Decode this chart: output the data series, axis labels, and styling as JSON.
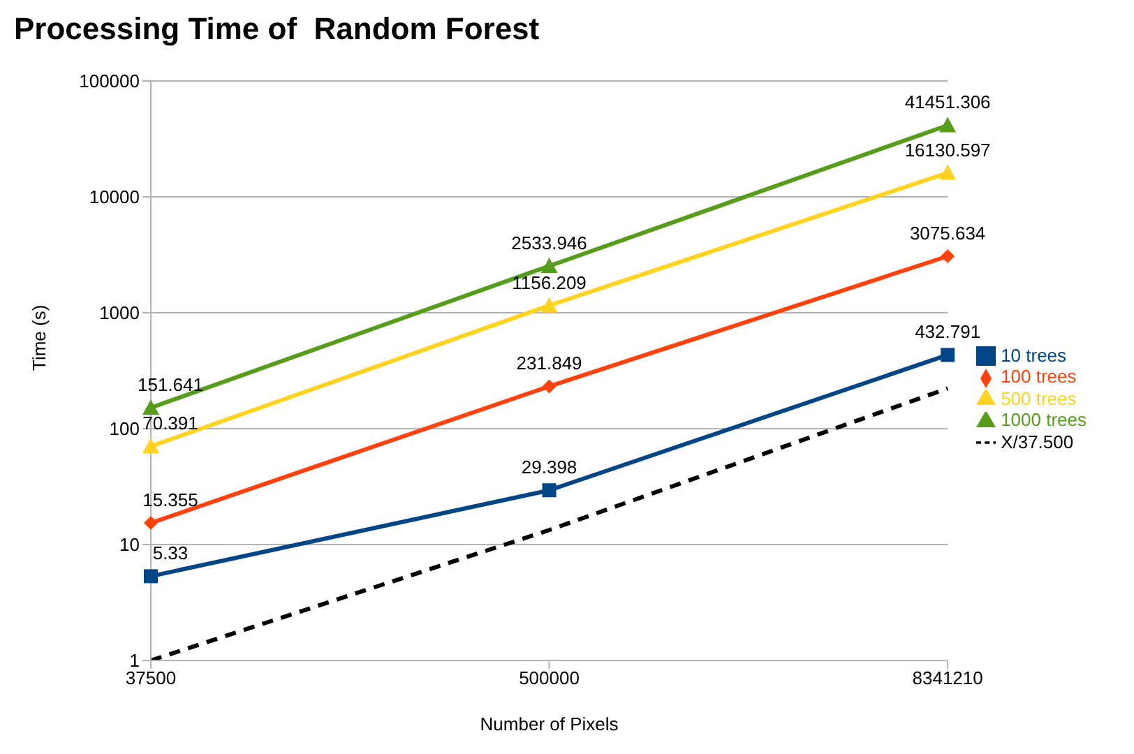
{
  "chart_data": {
    "type": "line",
    "title": "Processing Time of  Random Forest",
    "xlabel": "Number of  Pixels",
    "ylabel": "Time (s)",
    "categories": [
      "37500",
      "500000",
      "8341210"
    ],
    "series": [
      {
        "name": "10 trees",
        "color": "#004586",
        "values": [
          5.33,
          29.398,
          432.791
        ],
        "marker": "square",
        "value_labels": [
          "5.33",
          "29.398",
          "432.791"
        ]
      },
      {
        "name": "100 trees",
        "color": "#ff420e",
        "values": [
          15.355,
          231.849,
          3075.634
        ],
        "marker": "diamond",
        "value_labels": [
          "15.355",
          "231.849",
          "3075.634"
        ]
      },
      {
        "name": "500 trees",
        "color": "#ffd320",
        "values": [
          70.391,
          1156.209,
          16130.597
        ],
        "marker": "triangle",
        "value_labels": [
          "70.391",
          "1156.209",
          "16130.597"
        ]
      },
      {
        "name": "1000 trees",
        "color": "#579d1c",
        "values": [
          151.641,
          2533.946,
          41451.306
        ],
        "marker": "triangle",
        "value_labels": [
          "151.641",
          "2533.946",
          "41451.306"
        ]
      },
      {
        "name": "X/37.500",
        "color": "#000000",
        "values": [
          1,
          13.333,
          222.432
        ],
        "marker": "none",
        "line_style": "dashed"
      }
    ],
    "log": "y",
    "ylim": [
      1,
      100000
    ],
    "yticks": [
      1,
      10,
      100,
      1000,
      10000,
      100000
    ],
    "grid": "y",
    "legend": "right"
  }
}
